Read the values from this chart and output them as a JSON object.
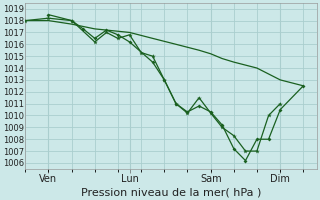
{
  "xlabel": "Pression niveau de la mer( hPa )",
  "bg_color": "#cce8e8",
  "grid_color": "#aacece",
  "line_color": "#1a6020",
  "ylim": [
    1005.5,
    1019.5
  ],
  "yticks": [
    1006,
    1007,
    1008,
    1009,
    1010,
    1011,
    1012,
    1013,
    1014,
    1015,
    1016,
    1017,
    1018,
    1019
  ],
  "x_labels": [
    "Ven",
    "Lun",
    "Sam",
    "Dim"
  ],
  "x_tick_pos": [
    0.083,
    0.375,
    0.667,
    0.917
  ],
  "smooth_x": [
    0.0,
    0.083,
    0.167,
    0.25,
    0.375,
    0.458,
    0.542,
    0.625,
    0.667,
    0.708,
    0.75,
    0.833,
    0.875,
    0.917,
    1.0
  ],
  "smooth_y": [
    1018.0,
    1018.0,
    1017.7,
    1017.3,
    1017.0,
    1016.5,
    1016.0,
    1015.5,
    1015.2,
    1014.8,
    1014.5,
    1014.0,
    1013.5,
    1013.0,
    1012.5
  ],
  "star_x": [
    0.0,
    0.083,
    0.167,
    0.25,
    0.292,
    0.333,
    0.375,
    0.417,
    0.458,
    0.5,
    0.542,
    0.583,
    0.625,
    0.667,
    0.708,
    0.75,
    0.792,
    0.833,
    0.875,
    0.917
  ],
  "star_y": [
    1018.0,
    1018.2,
    1018.0,
    1016.2,
    1017.0,
    1016.5,
    1016.8,
    1015.3,
    1015.0,
    1013.0,
    1011.0,
    1010.2,
    1011.5,
    1010.2,
    1009.0,
    1008.3,
    1007.0,
    1007.0,
    1010.0,
    1011.0
  ],
  "dot_x": [
    0.083,
    0.167,
    0.208,
    0.25,
    0.292,
    0.333,
    0.375,
    0.458,
    0.5,
    0.542,
    0.583,
    0.625,
    0.667,
    0.708,
    0.75,
    0.792,
    0.833,
    0.875,
    0.917,
    1.0
  ],
  "dot_y": [
    1018.5,
    1018.0,
    1017.3,
    1016.5,
    1017.2,
    1016.8,
    1016.2,
    1014.5,
    1013.0,
    1011.0,
    1010.3,
    1010.8,
    1010.3,
    1009.2,
    1007.2,
    1006.2,
    1008.0,
    1008.0,
    1010.5,
    1012.5
  ],
  "fontsize_xlabel": 8,
  "fontsize_tick": 6,
  "fontsize_xtick": 7
}
